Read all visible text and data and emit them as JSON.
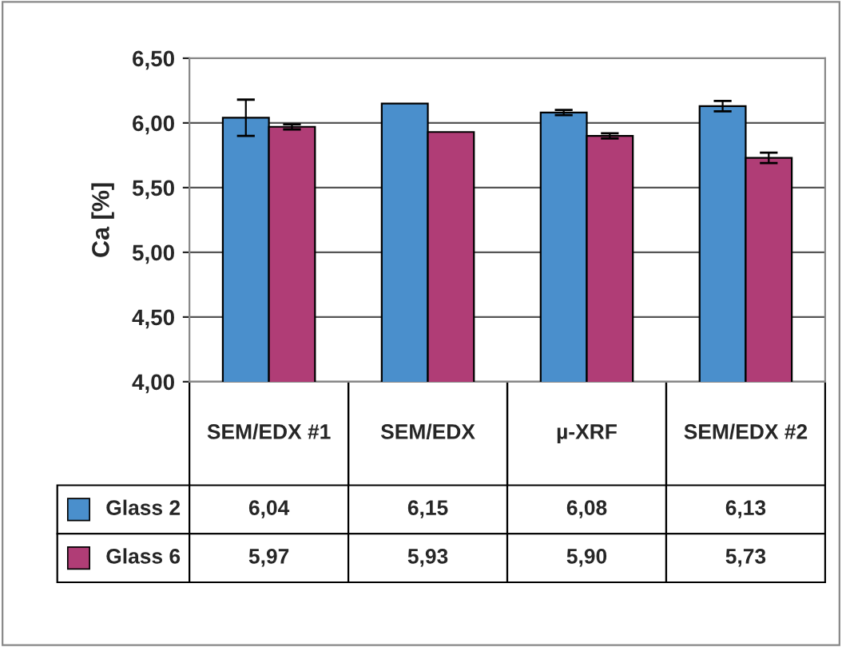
{
  "chart_data": {
    "type": "bar",
    "ylabel": "Ca [%]",
    "categories": [
      "SEM/EDX #1",
      "SEM/EDX",
      "µ-XRF",
      "SEM/EDX #2"
    ],
    "series": [
      {
        "name": "Glass 2",
        "color": "#4a8fcc",
        "values": [
          6.04,
          6.15,
          6.08,
          6.13
        ],
        "value_labels": [
          "6,04",
          "6,15",
          "6,08",
          "6,13"
        ],
        "errors": [
          0.14,
          null,
          0.02,
          0.04
        ]
      },
      {
        "name": "Glass 6",
        "color": "#b03d76",
        "values": [
          5.97,
          5.93,
          5.9,
          5.73
        ],
        "value_labels": [
          "5,97",
          "5,93",
          "5,90",
          "5,73"
        ],
        "errors": [
          0.02,
          null,
          0.02,
          0.04
        ]
      }
    ],
    "ylim": [
      4.0,
      6.5
    ],
    "yticks": [
      {
        "value": 4.0,
        "label": "4,00"
      },
      {
        "value": 4.5,
        "label": "4,50"
      },
      {
        "value": 5.0,
        "label": "5,00"
      },
      {
        "value": 5.5,
        "label": "5,50"
      },
      {
        "value": 6.0,
        "label": "6,00"
      },
      {
        "value": 6.5,
        "label": "6,50"
      }
    ],
    "grid": "y",
    "legend": "bottom"
  }
}
